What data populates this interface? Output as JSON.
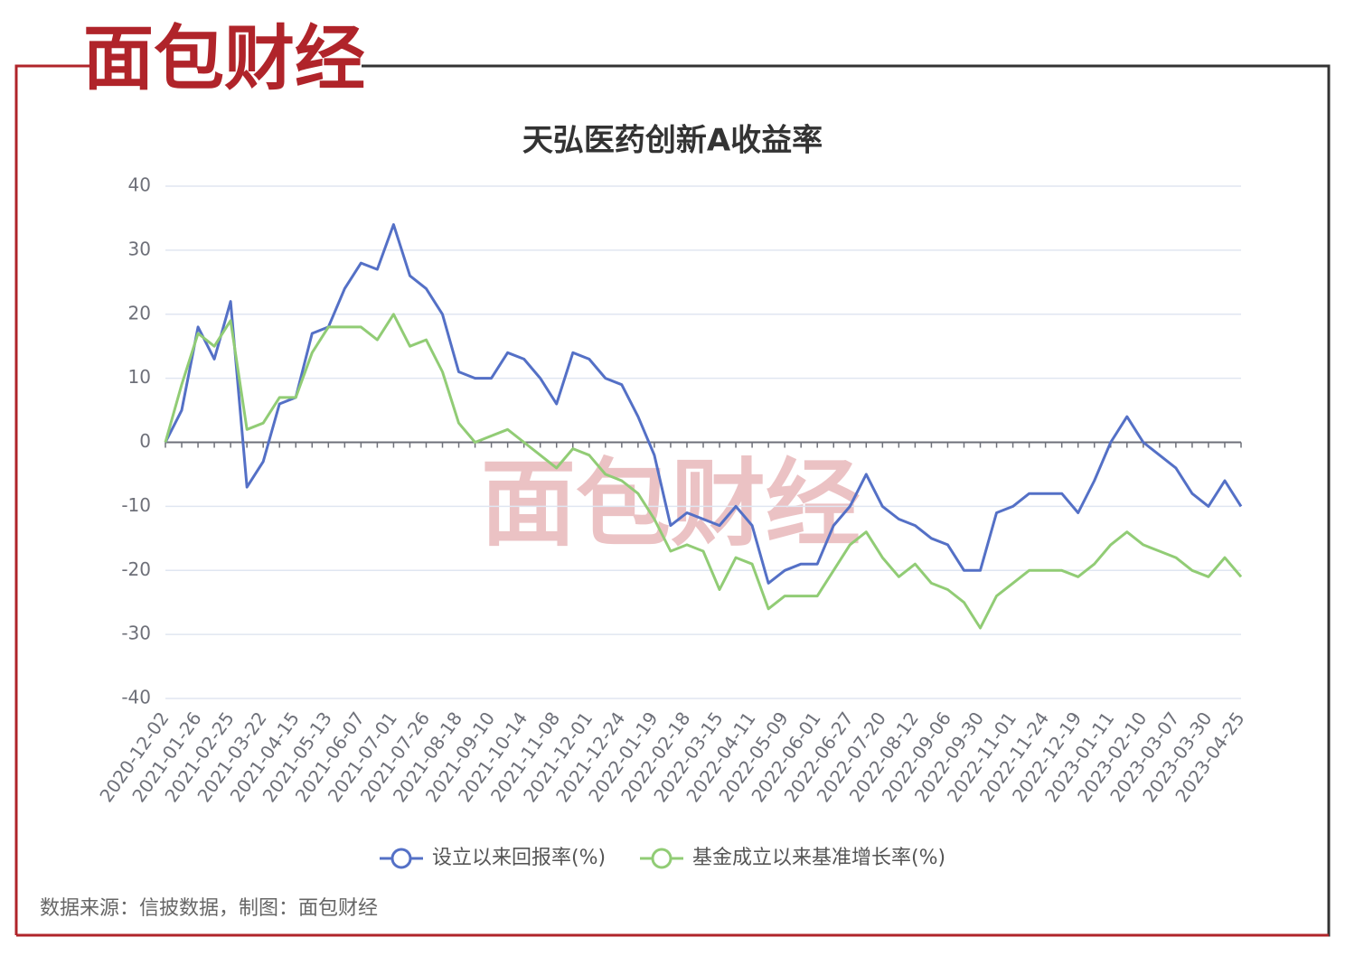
{
  "logo": "面包财经",
  "watermark": "面包财经",
  "source": "数据来源：信披数据，制图：面包财经",
  "chart_data": {
    "type": "line",
    "title": "天弘医药创新A收益率",
    "categories": [
      "2020-12-02",
      null,
      "2021-01-26",
      null,
      "2021-02-25",
      null,
      "2021-03-22",
      null,
      "2021-04-15",
      null,
      "2021-05-13",
      null,
      "2021-06-07",
      null,
      "2021-07-01",
      null,
      "2021-07-26",
      null,
      "2021-08-18",
      null,
      "2021-09-10",
      null,
      "2021-10-14",
      null,
      "2021-11-08",
      null,
      "2021-12-01",
      null,
      "2021-12-24",
      null,
      "2022-01-19",
      null,
      "2022-02-18",
      null,
      "2022-03-15",
      null,
      "2022-04-11",
      null,
      "2022-05-09",
      null,
      "2022-06-01",
      null,
      "2022-06-27",
      null,
      "2022-07-20",
      null,
      "2022-08-12",
      null,
      "2022-09-06",
      null,
      "2022-09-30",
      null,
      "2022-11-01",
      null,
      "2022-11-24",
      null,
      "2022-12-19",
      null,
      "2023-01-11",
      null,
      "2023-02-10",
      null,
      "2023-03-07",
      null,
      "2023-03-30",
      null,
      "2023-04-25"
    ],
    "series": [
      {
        "name": "设立以来回报率(%)",
        "color": "#5470c6",
        "values": [
          0,
          5,
          18,
          13,
          22,
          -7,
          -3,
          6,
          7,
          17,
          18,
          24,
          28,
          27,
          34,
          26,
          24,
          20,
          11,
          10,
          10,
          14,
          13,
          10,
          6,
          14,
          13,
          10,
          9,
          4,
          -2,
          -13,
          -11,
          -12,
          -13,
          -10,
          -13,
          -22,
          -20,
          -19,
          -19,
          -13,
          -10,
          -5,
          -10,
          -12,
          -13,
          -15,
          -16,
          -20,
          -20,
          -11,
          -10,
          -8,
          -8,
          -8,
          -11,
          -6,
          0,
          4,
          0,
          -2,
          -4,
          -8,
          -10,
          -6,
          -10
        ]
      },
      {
        "name": "基金成立以来基准增长率(%)",
        "color": "#91cc75",
        "values": [
          0,
          9,
          17,
          15,
          19,
          2,
          3,
          7,
          7,
          14,
          18,
          18,
          18,
          16,
          20,
          15,
          16,
          11,
          3,
          0,
          1,
          2,
          0,
          -2,
          -4,
          -1,
          -2,
          -5,
          -6,
          -8,
          -12,
          -17,
          -16,
          -17,
          -23,
          -18,
          -19,
          -26,
          -24,
          -24,
          -24,
          -20,
          -16,
          -14,
          -18,
          -21,
          -19,
          -22,
          -23,
          -25,
          -29,
          -24,
          -22,
          -20,
          -20,
          -20,
          -21,
          -19,
          -16,
          -14,
          -16,
          -17,
          -18,
          -20,
          -21,
          -18,
          -21
        ]
      }
    ],
    "ylim": [
      -40,
      40
    ],
    "yticks": [
      -40,
      -30,
      -20,
      -10,
      0,
      10,
      20,
      30,
      40
    ],
    "grid": true
  }
}
